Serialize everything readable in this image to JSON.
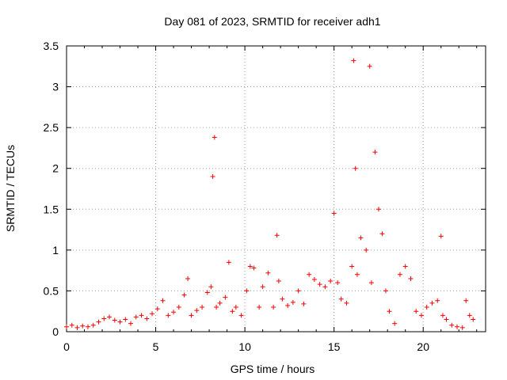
{
  "chart_data": {
    "type": "scatter",
    "title": "Day 081 of 2023, SRMTID for receiver adh1",
    "xlabel": "GPS time / hours",
    "ylabel": "SRMTID / TECUs",
    "xlim": [
      0,
      23.5
    ],
    "ylim": [
      0,
      3.5
    ],
    "xticks": [
      0,
      5,
      10,
      15,
      20
    ],
    "xtick_labels": [
      "0",
      "5",
      "10",
      "15",
      "20"
    ],
    "yticks": [
      0,
      0.5,
      1,
      1.5,
      2,
      2.5,
      3,
      3.5
    ],
    "ytick_labels": [
      "0",
      "0.5",
      "1",
      "1.5",
      "2",
      "2.5",
      "3",
      "3.5"
    ],
    "grid": true,
    "marker": "plus",
    "color": "#ff0000",
    "series": [
      {
        "name": "SRMTID",
        "x": [
          0.0,
          0.3,
          0.6,
          0.9,
          1.2,
          1.5,
          1.8,
          2.1,
          2.4,
          2.7,
          3.0,
          3.3,
          3.6,
          3.9,
          4.2,
          4.5,
          4.8,
          5.1,
          5.4,
          5.7,
          6.0,
          6.3,
          6.6,
          6.8,
          7.0,
          7.3,
          7.6,
          7.9,
          8.1,
          8.2,
          8.3,
          8.4,
          8.6,
          8.9,
          9.1,
          9.3,
          9.5,
          9.8,
          10.1,
          10.3,
          10.5,
          10.8,
          11.0,
          11.3,
          11.6,
          11.8,
          11.9,
          12.1,
          12.4,
          12.7,
          13.0,
          13.3,
          13.6,
          13.9,
          14.2,
          14.5,
          14.8,
          15.0,
          15.2,
          15.4,
          15.7,
          16.0,
          16.1,
          16.2,
          16.3,
          16.5,
          16.8,
          17.0,
          17.1,
          17.3,
          17.5,
          17.7,
          17.9,
          18.1,
          18.4,
          18.7,
          19.0,
          19.3,
          19.6,
          19.9,
          20.2,
          20.5,
          20.8,
          21.0,
          21.1,
          21.3,
          21.6,
          21.9,
          22.2,
          22.4,
          22.6,
          22.8
        ],
        "y": [
          0.06,
          0.08,
          0.05,
          0.07,
          0.06,
          0.08,
          0.12,
          0.16,
          0.18,
          0.14,
          0.12,
          0.15,
          0.1,
          0.18,
          0.2,
          0.16,
          0.22,
          0.28,
          0.38,
          0.2,
          0.24,
          0.3,
          0.45,
          0.65,
          0.2,
          0.26,
          0.3,
          0.48,
          0.55,
          1.9,
          2.38,
          0.3,
          0.35,
          0.42,
          0.85,
          0.25,
          0.3,
          0.2,
          0.5,
          0.8,
          0.78,
          0.3,
          0.55,
          0.72,
          0.3,
          1.18,
          0.62,
          0.4,
          0.32,
          0.36,
          0.5,
          0.34,
          0.7,
          0.64,
          0.58,
          0.55,
          0.62,
          1.45,
          0.6,
          0.4,
          0.35,
          0.8,
          3.32,
          2.0,
          0.7,
          1.15,
          1.0,
          3.25,
          0.6,
          2.2,
          1.5,
          1.2,
          0.5,
          0.25,
          0.1,
          0.7,
          0.8,
          0.65,
          0.25,
          0.2,
          0.3,
          0.35,
          0.38,
          1.17,
          0.2,
          0.15,
          0.08,
          0.06,
          0.05,
          0.38,
          0.2,
          0.15
        ]
      }
    ]
  }
}
